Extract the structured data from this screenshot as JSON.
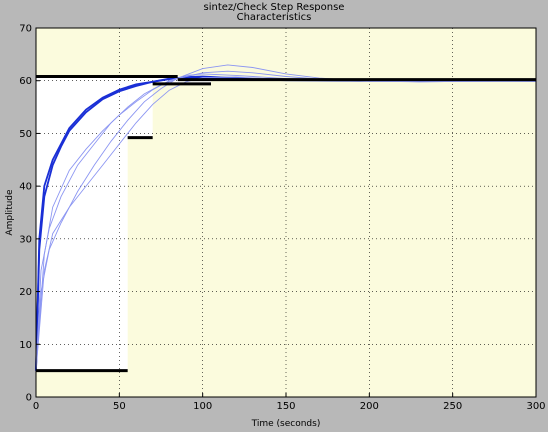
{
  "window": {
    "title": "sintez/Check Step Response",
    "subtitle": "Characteristics"
  },
  "chart_data": {
    "type": "line",
    "title": "sintez/Check Step Response",
    "subtitle": "Characteristics",
    "xlabel": "Time (seconds)",
    "ylabel": "Amplitude",
    "xlim": [
      0,
      300
    ],
    "ylim": [
      0,
      70
    ],
    "xticks": [
      0,
      50,
      100,
      150,
      200,
      250,
      300
    ],
    "yticks": [
      0,
      10,
      20,
      30,
      40,
      50,
      60,
      70
    ],
    "grid": true,
    "colors": {
      "plot_background": "#fbfbdd",
      "allowed_region": "#ffffff",
      "figure_background": "#b8b8b8",
      "response_main": "#1a2fd6",
      "response_light": "#8c96f2",
      "bound": "#000000"
    },
    "series": [
      {
        "values_x": [
          0,
          2,
          5,
          10,
          15,
          20,
          30,
          40,
          50,
          60,
          70,
          80,
          90,
          100,
          120,
          150,
          200,
          300
        ],
        "values_y": [
          5,
          30,
          40,
          45,
          48,
          51,
          54.5,
          56.8,
          58.3,
          59.3,
          59.8,
          60.3,
          60.7,
          60.8,
          60.5,
          60.2,
          60,
          60
        ],
        "style": "main"
      },
      {
        "values_x": [
          0,
          2,
          5,
          10,
          15,
          20,
          30,
          40,
          50,
          60,
          70,
          80,
          90,
          100,
          120,
          150,
          200,
          300
        ],
        "values_y": [
          5,
          28,
          38,
          44,
          47.5,
          50.5,
          54,
          56.5,
          58,
          59,
          59.8,
          60.4,
          60.6,
          60.6,
          60.3,
          60.1,
          60,
          60
        ],
        "style": "main"
      },
      {
        "values_x": [
          0,
          3,
          8,
          15,
          25,
          35,
          45,
          55,
          65,
          75,
          85,
          100,
          115,
          130,
          150,
          170,
          200,
          230,
          300
        ],
        "values_y": [
          5,
          24,
          32,
          38,
          44,
          48,
          52,
          55,
          57.5,
          59.2,
          60.4,
          61.5,
          61.8,
          61.5,
          60.8,
          60.3,
          60,
          59.8,
          60
        ],
        "style": "light"
      },
      {
        "values_x": [
          0,
          3,
          8,
          15,
          25,
          35,
          45,
          55,
          65,
          75,
          85,
          100,
          115,
          130,
          150,
          170,
          200,
          230,
          300
        ],
        "values_y": [
          5,
          20,
          28,
          33,
          39,
          44,
          48.5,
          52.5,
          56,
          58.5,
          60.5,
          62.3,
          63,
          62.5,
          61.3,
          60.5,
          59.9,
          59.8,
          60
        ],
        "style": "light"
      },
      {
        "values_x": [
          0,
          5,
          10,
          20,
          30,
          40,
          50,
          60,
          70,
          80,
          90,
          100,
          120,
          150,
          200,
          300
        ],
        "values_y": [
          5,
          27,
          36,
          43,
          47,
          50.5,
          53.5,
          56,
          58.3,
          60,
          61,
          61.3,
          61,
          60.4,
          60,
          60
        ],
        "style": "light"
      },
      {
        "values_x": [
          0,
          5,
          10,
          20,
          30,
          40,
          50,
          60,
          70,
          80,
          90,
          100,
          120,
          150,
          200,
          300
        ],
        "values_y": [
          5,
          24,
          31,
          36,
          40,
          44,
          48,
          52,
          55.5,
          58.2,
          59.8,
          60.6,
          60.7,
          60.2,
          60,
          60
        ],
        "style": "light"
      }
    ],
    "bounds": [
      {
        "kind": "upper",
        "x": [
          0,
          85
        ],
        "y": 60.8
      },
      {
        "kind": "upper",
        "x": [
          85,
          300
        ],
        "y": 60.2
      },
      {
        "kind": "lower",
        "x": [
          0,
          55
        ],
        "y": 5
      },
      {
        "kind": "lower",
        "x": [
          55,
          70
        ],
        "y": 49.2
      },
      {
        "kind": "lower",
        "x": [
          70,
          105
        ],
        "y": 59.4
      }
    ]
  }
}
